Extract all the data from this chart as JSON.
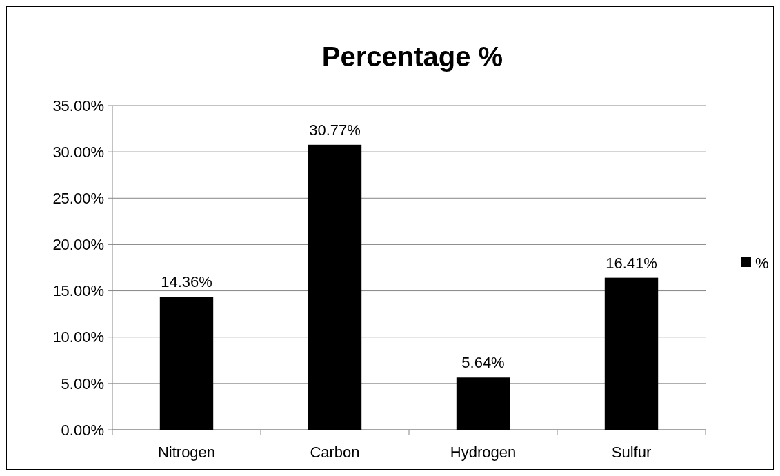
{
  "chart_data": {
    "type": "bar",
    "title": "Percentage %",
    "categories": [
      "Nitrogen",
      "Carbon",
      "Hydrogen",
      "Sulfur"
    ],
    "series": [
      {
        "name": "%",
        "color": "#000000",
        "values": [
          14.36,
          30.77,
          5.64,
          16.41
        ],
        "value_labels": [
          "14.36%",
          "30.77%",
          "5.64%",
          "16.41%"
        ]
      }
    ],
    "ylim": [
      0,
      35
    ],
    "yticks": [
      {
        "value": 0,
        "label": "0.00%"
      },
      {
        "value": 5,
        "label": "5.00%"
      },
      {
        "value": 10,
        "label": "10.00%"
      },
      {
        "value": 15,
        "label": "15.00%"
      },
      {
        "value": 20,
        "label": "20.00%"
      },
      {
        "value": 25,
        "label": "25.00%"
      },
      {
        "value": 30,
        "label": "30.00%"
      },
      {
        "value": 35,
        "label": "35.00%"
      }
    ],
    "grid": "y",
    "legend": "right"
  }
}
